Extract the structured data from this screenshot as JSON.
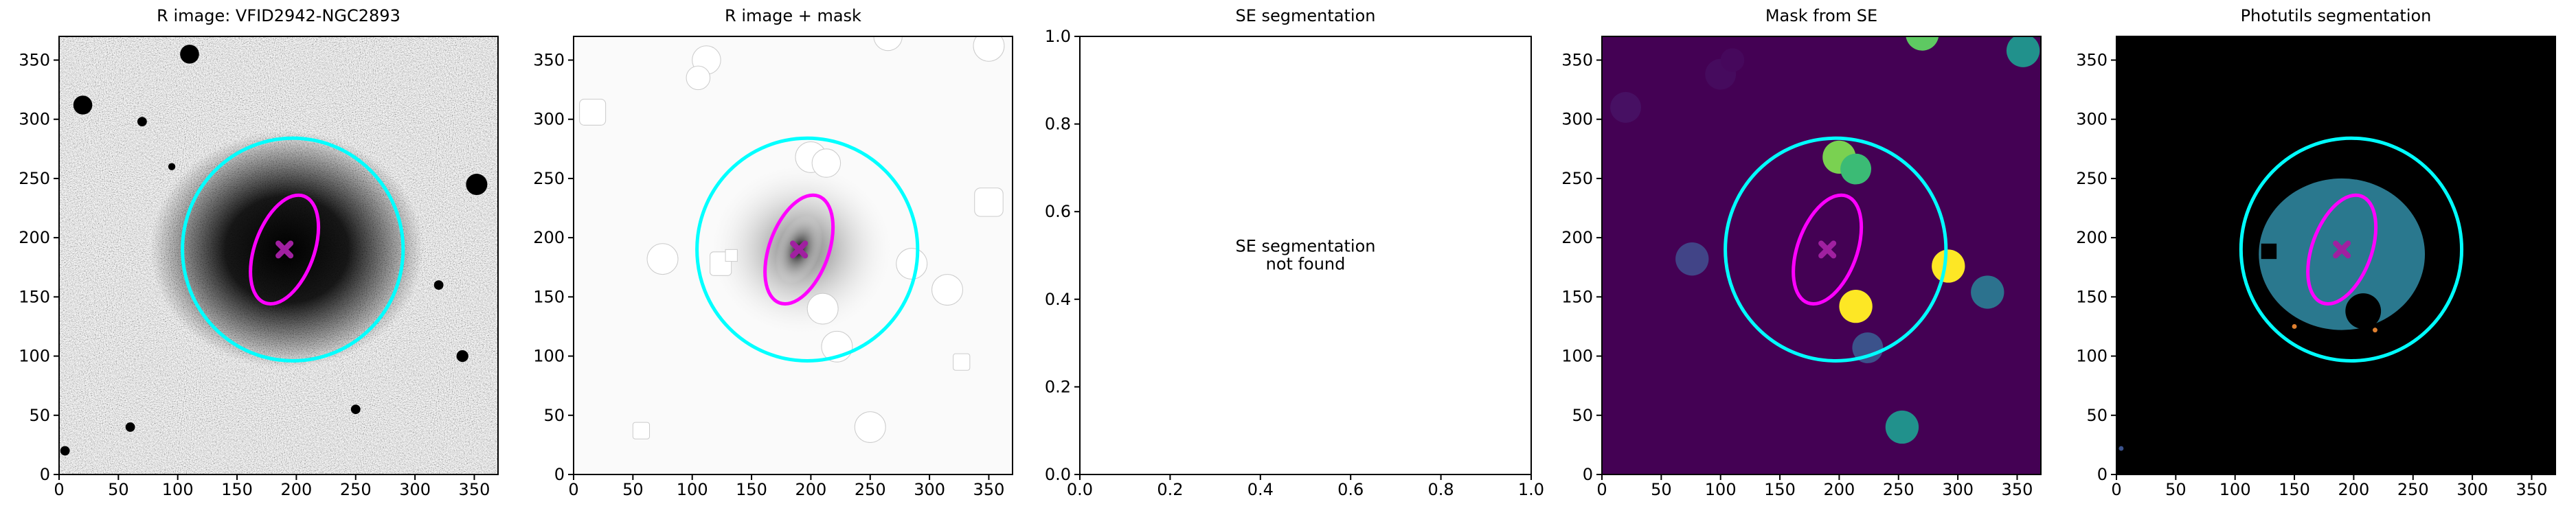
{
  "chart_data": [
    {
      "type": "image",
      "title": "R image: VFID2942-NGC2893",
      "xlim": [
        0,
        370
      ],
      "ylim": [
        0,
        370
      ],
      "xticks": [
        0,
        50,
        100,
        150,
        200,
        250,
        300,
        350
      ],
      "yticks": [
        0,
        50,
        100,
        150,
        200,
        250,
        300,
        350
      ],
      "ellipses": [
        {
          "cx": 197,
          "cy": 190,
          "width": 186,
          "height": 188,
          "angle": 0,
          "color": "#00ffff"
        },
        {
          "cx": 190,
          "cy": 190,
          "width": 50,
          "height": 96,
          "angle": -20,
          "color": "#ff00ff"
        }
      ],
      "marker": {
        "x": 190,
        "y": 190,
        "color": "#a020a0"
      }
    },
    {
      "type": "image",
      "title": "R image + mask",
      "xlim": [
        0,
        370
      ],
      "ylim": [
        0,
        370
      ],
      "xticks": [
        0,
        50,
        100,
        150,
        200,
        250,
        300,
        350
      ],
      "yticks": [
        0,
        50,
        100,
        150,
        200,
        250,
        300,
        350
      ],
      "ellipses": [
        {
          "cx": 197,
          "cy": 190,
          "width": 186,
          "height": 188,
          "angle": 0,
          "color": "#00ffff"
        },
        {
          "cx": 190,
          "cy": 190,
          "width": 50,
          "height": 96,
          "angle": -20,
          "color": "#ff00ff"
        }
      ],
      "marker": {
        "x": 190,
        "y": 190,
        "color": "#a020a0"
      }
    },
    {
      "type": "empty",
      "title": "SE segmentation",
      "xlim": [
        0,
        1
      ],
      "ylim": [
        0,
        1
      ],
      "xticks": [
        {
          "value": 0,
          "label": "0.0"
        },
        {
          "value": 0.2,
          "label": "0.2"
        },
        {
          "value": 0.4,
          "label": "0.4"
        },
        {
          "value": 0.6,
          "label": "0.6"
        },
        {
          "value": 0.8,
          "label": "0.8"
        },
        {
          "value": 1,
          "label": "1.0"
        }
      ],
      "yticks": [
        {
          "value": 0,
          "label": "0.0"
        },
        {
          "value": 0.2,
          "label": "0.2"
        },
        {
          "value": 0.4,
          "label": "0.4"
        },
        {
          "value": 0.6,
          "label": "0.6"
        },
        {
          "value": 0.8,
          "label": "0.8"
        },
        {
          "value": 1,
          "label": "1.0"
        }
      ],
      "annotation": "SE segmentation\nnot found"
    },
    {
      "type": "image",
      "title": "Mask from SE",
      "xlim": [
        0,
        370
      ],
      "ylim": [
        0,
        370
      ],
      "xticks": [
        0,
        50,
        100,
        150,
        200,
        250,
        300,
        350
      ],
      "yticks": [
        0,
        50,
        100,
        150,
        200,
        250,
        300,
        350
      ],
      "ellipses": [
        {
          "cx": 197,
          "cy": 190,
          "width": 186,
          "height": 188,
          "angle": 0,
          "color": "#00ffff"
        },
        {
          "cx": 190,
          "cy": 190,
          "width": 50,
          "height": 96,
          "angle": -20,
          "color": "#ff00ff"
        }
      ],
      "marker": {
        "x": 190,
        "y": 190,
        "color": "#a020a0"
      }
    },
    {
      "type": "image",
      "title": "Photutils segmentation",
      "xlim": [
        0,
        370
      ],
      "ylim": [
        0,
        370
      ],
      "xticks": [
        0,
        50,
        100,
        150,
        200,
        250,
        300,
        350
      ],
      "yticks": [
        0,
        50,
        100,
        150,
        200,
        250,
        300,
        350
      ],
      "ellipses": [
        {
          "cx": 198,
          "cy": 190,
          "width": 186,
          "height": 188,
          "angle": 0,
          "color": "#00ffff"
        },
        {
          "cx": 190,
          "cy": 190,
          "width": 50,
          "height": 96,
          "angle": -20,
          "color": "#ff00ff"
        }
      ],
      "marker": {
        "x": 190,
        "y": 190,
        "color": "#a020a0"
      }
    }
  ]
}
